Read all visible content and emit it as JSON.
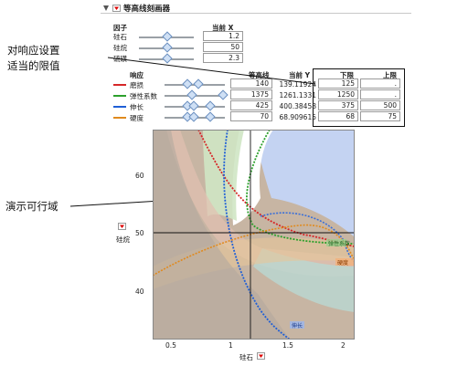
{
  "panel": {
    "title": "等高线刻画器",
    "factor_header": "因子",
    "current_x_header": "当前 X",
    "factors": [
      {
        "name": "硅石",
        "value": "1.2",
        "slider_fraction": 0.35
      },
      {
        "name": "硅烷",
        "value": "50",
        "slider_fraction": 0.5
      },
      {
        "name": "硫磺",
        "value": "2.3",
        "slider_fraction": 0.5
      }
    ],
    "response_header": "响应",
    "contour_header": "等高线",
    "current_y_header": "当前 Y",
    "lower_header": "下限",
    "upper_header": "上限",
    "responses": [
      {
        "name": "磨损",
        "color": "#d62728",
        "contour": "140",
        "current_y": "139.11924",
        "lower": "125",
        "upper": "."
      },
      {
        "name": "弹性系数",
        "color": "#2ca02c",
        "contour": "1375",
        "current_y": "1261.1331",
        "lower": "1250",
        "upper": "."
      },
      {
        "name": "伸长",
        "color": "#1f5fd6",
        "contour": "425",
        "current_y": "400.38458",
        "lower": "375",
        "upper": "500"
      },
      {
        "name": "硬度",
        "color": "#e08a1e",
        "contour": "70",
        "current_y": "68.909615",
        "lower": "68",
        "upper": "75"
      }
    ]
  },
  "callouts": {
    "limits": "对响应设置\n适当的限值",
    "feasible": "演示可行域"
  },
  "plot": {
    "x_label": "硅石",
    "y_label": "硅烷",
    "x_ticks": [
      "0.5",
      "1",
      "1.5",
      "2"
    ],
    "y_ticks": [
      "60",
      "50",
      "40"
    ],
    "crosshair": {
      "x": 1.2,
      "y": 50
    },
    "curve_labels": [
      "硬度",
      "弹性系数",
      "伸长"
    ]
  }
}
